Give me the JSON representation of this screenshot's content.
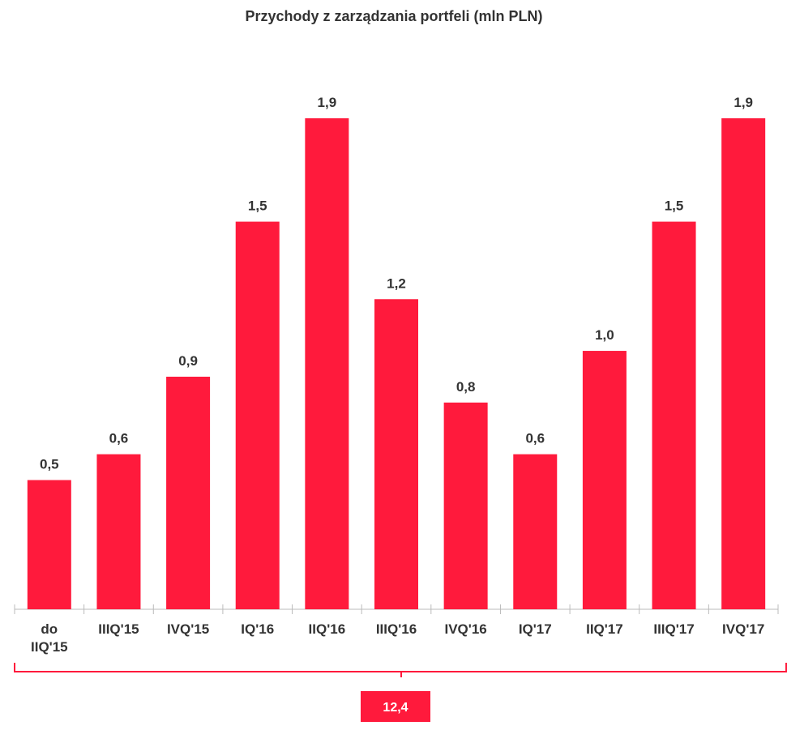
{
  "chart_data": {
    "type": "bar",
    "title": "Przychody z zarządzania portfeli (mln PLN)",
    "categories": [
      "do IIQ'15",
      "IIIQ'15",
      "IVQ'15",
      "IQ'16",
      "IIQ'16",
      "IIIQ'16",
      "IVQ'16",
      "IQ'17",
      "IIQ'17",
      "IIIQ'17",
      "IVQ'17"
    ],
    "values": [
      0.5,
      0.6,
      0.9,
      1.5,
      1.9,
      1.2,
      0.8,
      0.6,
      1.0,
      1.5,
      1.9
    ],
    "value_labels": [
      "0,5",
      "0,6",
      "0,9",
      "1,5",
      "1,9",
      "1,2",
      "0,8",
      "0,6",
      "1,0",
      "1,5",
      "1,9"
    ],
    "color": "#ff1a3c",
    "annotation": "12,4"
  }
}
